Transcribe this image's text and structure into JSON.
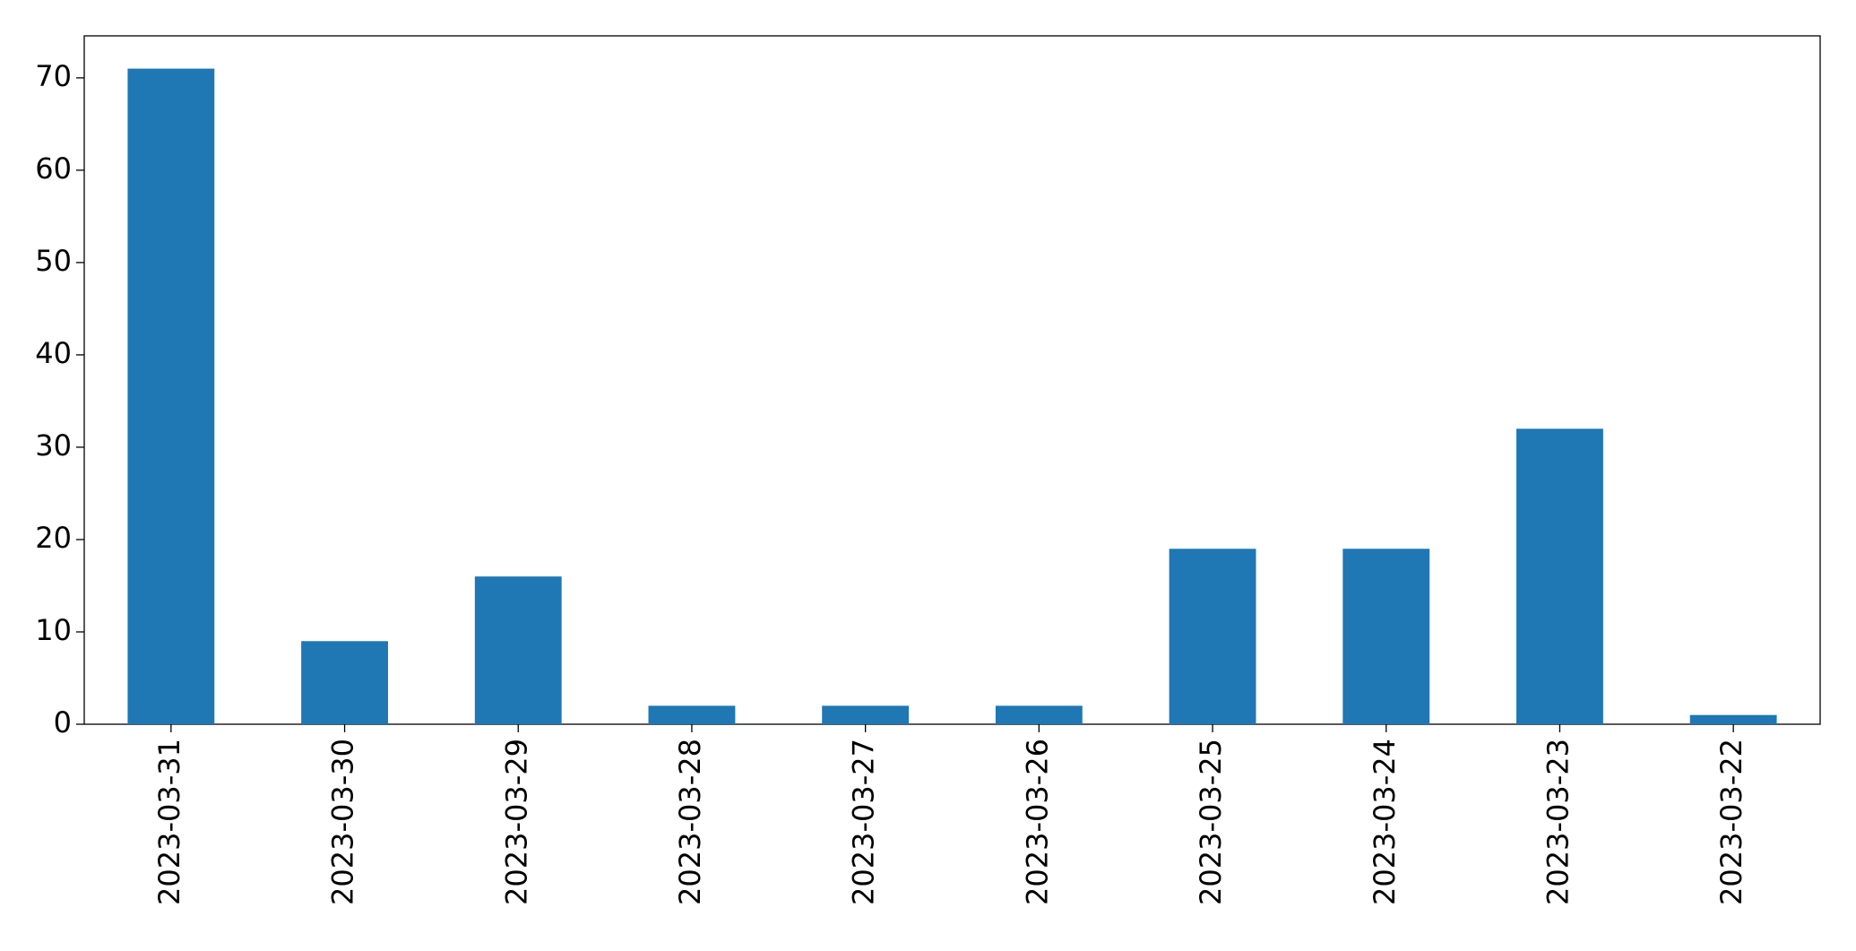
{
  "chart_data": {
    "type": "bar",
    "categories": [
      "2023-03-31",
      "2023-03-30",
      "2023-03-29",
      "2023-03-28",
      "2023-03-27",
      "2023-03-26",
      "2023-03-25",
      "2023-03-24",
      "2023-03-23",
      "2023-03-22"
    ],
    "values": [
      71,
      9,
      16,
      2,
      2,
      2,
      19,
      19,
      32,
      1
    ],
    "color": "#1f77b4",
    "ylim": [
      0,
      74.55
    ],
    "yticks": [
      0,
      10,
      20,
      30,
      40,
      50,
      60,
      70
    ],
    "grid": false
  }
}
